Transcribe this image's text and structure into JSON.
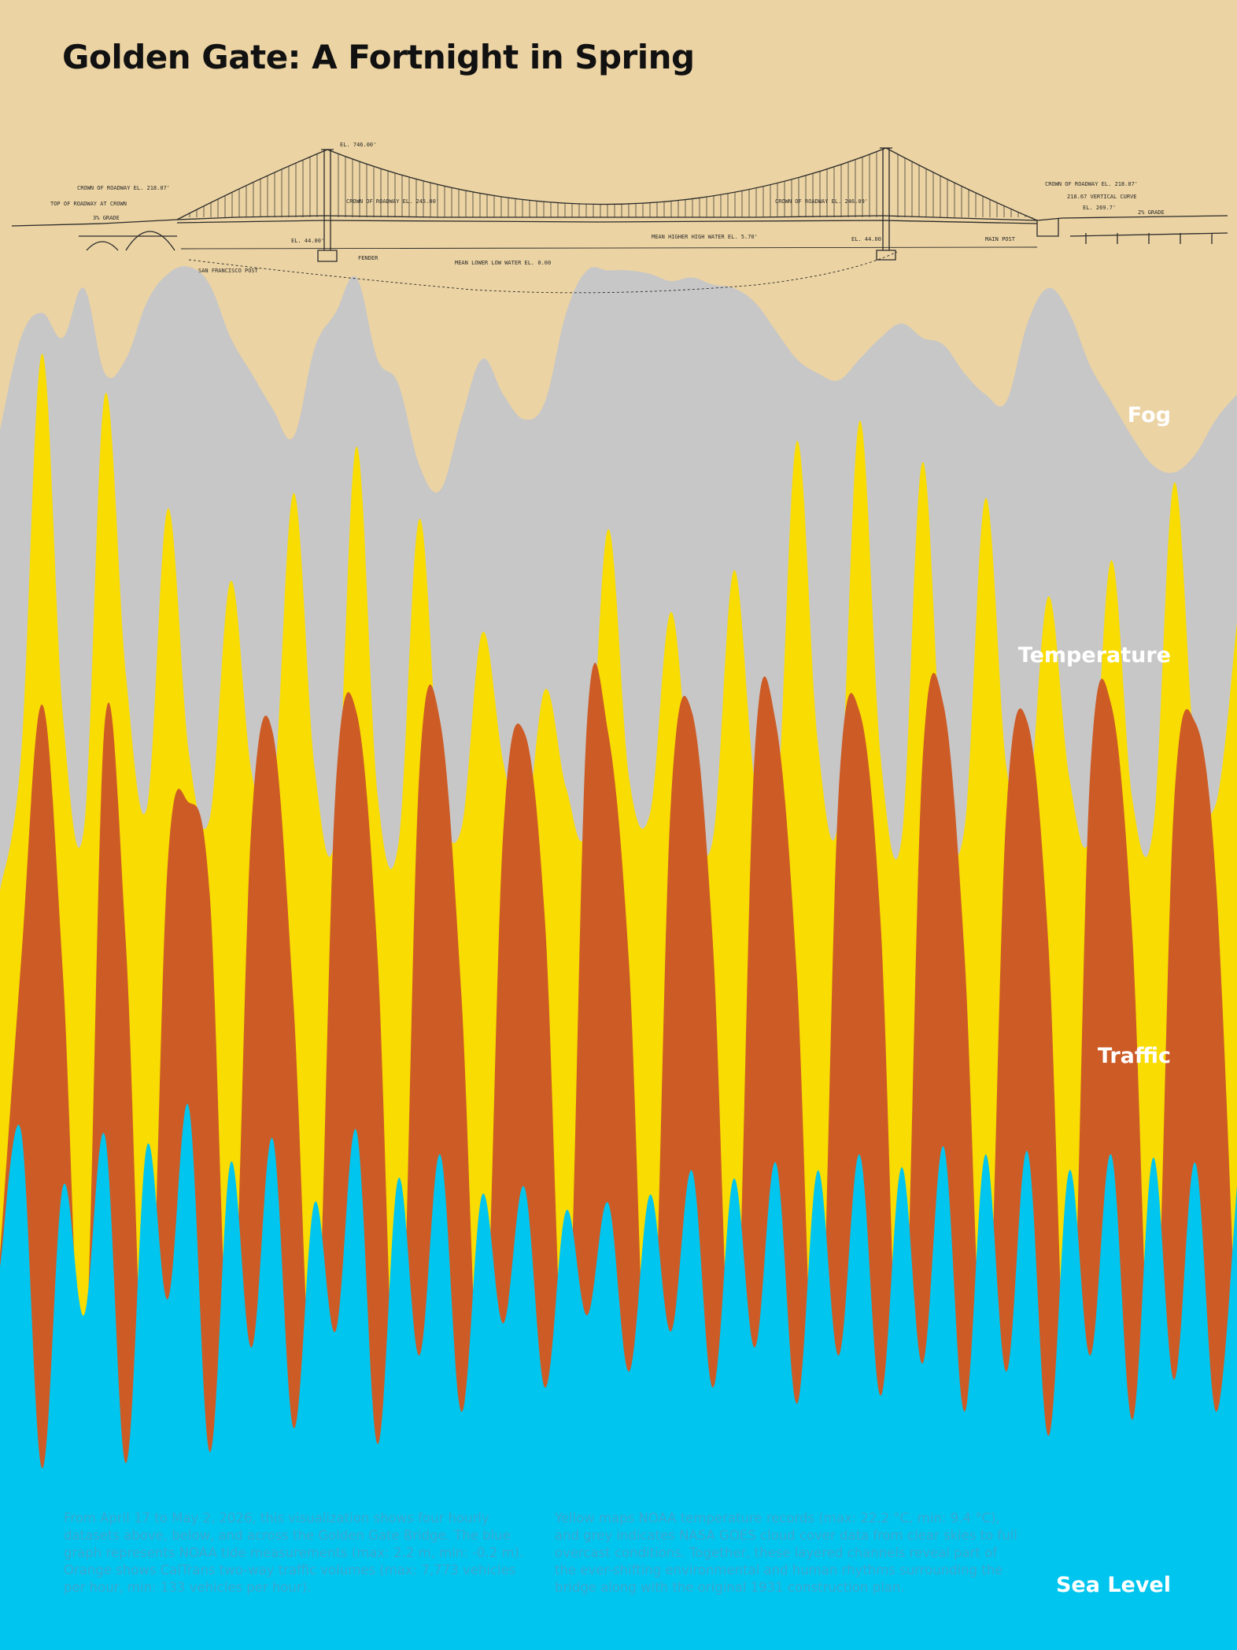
{
  "title": "Golden Gate: A Fortnight in Spring",
  "labels": {
    "fog": "Fog",
    "temperature": "Temperature",
    "traffic": "Traffic",
    "sea_level": "Sea Level"
  },
  "description": {
    "left": "From April 17 to May 2, 2026, this visualization shows four hourly datasets above, below, and across the Golden Gate Bridge. The blue graph represents NOAA tide measurements (max: 2.2 m, min: -0.2 m). Orange shows CalTrans two-way traffic volumes (max: 7,773 vehicles per hour, min: 133 vehicles per hour).",
    "right": "Yellow maps NOAA temperature records (max: 22.2 °C, min: 9.4 °C), and grey indicates NASA GOES cloud cover data from clear skies to full overcast conditions. Together, these layered channels reveal part of the ever-shifting environmental and human rhythms surrounding the bridge along with the original 1931 construction plan."
  },
  "drawing_annotations": [
    "EL. 746.00'",
    "CROWN OF ROADWAY EL. 218.07'",
    "TOP OF ROADWAY AT CROWN",
    "3% GRADE",
    "CROWN OF ROADWAY EL. 245.00'",
    "CROWN OF ROADWAY EL. 246.09'",
    "EL. 44.00'",
    "FENDER",
    "SAN FRANCISCO POST",
    "MEAN LOWER LOW WATER EL. 0.00",
    "MEAN HIGHER HIGH WATER EL. 5.70'",
    "EL. 44.00'",
    "MAIN POST",
    "CROWN OF ROADWAY EL. 218.07'",
    "218.67 VERTICAL CURVE",
    "EL. 269.7'",
    "2% GRADE"
  ],
  "colors": {
    "background": "#ebd3a3",
    "fog": "#c7c7c7",
    "temperature": "#f9dc02",
    "traffic": "#cd5b26",
    "sea_level": "#00c6ef",
    "title": "#111111",
    "drawing": "#2a2a2a",
    "description_text": "#3aa6cf"
  },
  "chart_data": {
    "type": "area",
    "x_range": [
      "2026-04-17",
      "2026-05-02"
    ],
    "sampling": "hourly",
    "series": [
      {
        "name": "Fog",
        "unit": "cloud cover, clear to overcast",
        "range": [
          0,
          1
        ],
        "values": [
          0.52,
          0.78,
          0.85,
          0.78,
          0.92,
          0.68,
          0.72,
          0.88,
          0.96,
          0.98,
          0.93,
          0.78,
          0.68,
          0.58,
          0.5,
          0.75,
          0.85,
          0.95,
          0.72,
          0.65,
          0.42,
          0.35,
          0.55,
          0.72,
          0.62,
          0.55,
          0.6,
          0.85,
          0.97,
          0.97,
          0.97,
          0.96,
          0.94,
          0.95,
          0.93,
          0.92,
          0.88,
          0.8,
          0.72,
          0.68,
          0.66,
          0.72,
          0.78,
          0.82,
          0.78,
          0.76,
          0.68,
          0.62,
          0.6,
          0.82,
          0.92,
          0.85,
          0.7,
          0.6,
          0.5,
          0.42,
          0.4,
          0.45,
          0.55,
          0.62
        ]
      },
      {
        "name": "Temperature",
        "unit": "°C",
        "range": [
          9.4,
          22.2
        ],
        "values": [
          11.2,
          13.8,
          21.6,
          14.6,
          12.4,
          20.8,
          15.4,
          12.8,
          18.6,
          13.9,
          12.6,
          17.2,
          13.5,
          12.9,
          18.9,
          13.6,
          12.3,
          19.8,
          13.1,
          12.1,
          18.4,
          13.2,
          12.4,
          16.2,
          13.7,
          12.3,
          15.1,
          13.2,
          12.5,
          18.2,
          13.4,
          12.7,
          16.6,
          13.0,
          12.2,
          17.4,
          13.3,
          12.5,
          19.9,
          14.1,
          12.6,
          20.3,
          13.8,
          12.2,
          19.5,
          13.2,
          12.4,
          18.8,
          13.6,
          12.7,
          16.9,
          13.4,
          12.3,
          17.6,
          13.0,
          12.4,
          19.1,
          13.8,
          12.9,
          16.4
        ]
      },
      {
        "name": "Traffic",
        "unit": "vehicles per hour",
        "range": [
          133,
          7773
        ],
        "values": [
          2300,
          5200,
          7773,
          5100,
          1100,
          7600,
          5400,
          700,
          6200,
          6800,
          5900,
          1200,
          6600,
          7500,
          4800,
          900,
          6900,
          7700,
          5300,
          600,
          7100,
          7600,
          4900,
          800,
          6500,
          7500,
          5600,
          1100,
          7600,
          7500,
          5200,
          700,
          6800,
          7700,
          5400,
          900,
          7300,
          7600,
          5100,
          600,
          6900,
          7700,
          5600,
          800,
          7200,
          7800,
          5300,
          1000,
          6700,
          7600,
          5400,
          700,
          7100,
          7800,
          5500,
          900,
          6800,
          7600,
          6000,
          1200
        ]
      },
      {
        "name": "Sea Level",
        "unit": "m",
        "range": [
          -0.2,
          2.2
        ],
        "values": [
          1.1,
          1.95,
          -0.15,
          1.6,
          0.8,
          1.92,
          -0.12,
          1.85,
          0.9,
          2.1,
          -0.05,
          1.75,
          0.6,
          1.9,
          0.1,
          1.5,
          0.7,
          1.95,
          0.0,
          1.65,
          0.55,
          1.8,
          0.2,
          1.55,
          0.75,
          1.6,
          0.35,
          1.45,
          0.8,
          1.5,
          0.45,
          1.55,
          0.7,
          1.7,
          0.35,
          1.65,
          0.6,
          1.75,
          0.25,
          1.7,
          0.55,
          1.8,
          0.3,
          1.72,
          0.5,
          1.85,
          0.2,
          1.8,
          0.45,
          1.82,
          0.05,
          1.7,
          0.55,
          1.8,
          0.15,
          1.78,
          0.4,
          1.75,
          0.2,
          1.6
        ]
      }
    ]
  }
}
